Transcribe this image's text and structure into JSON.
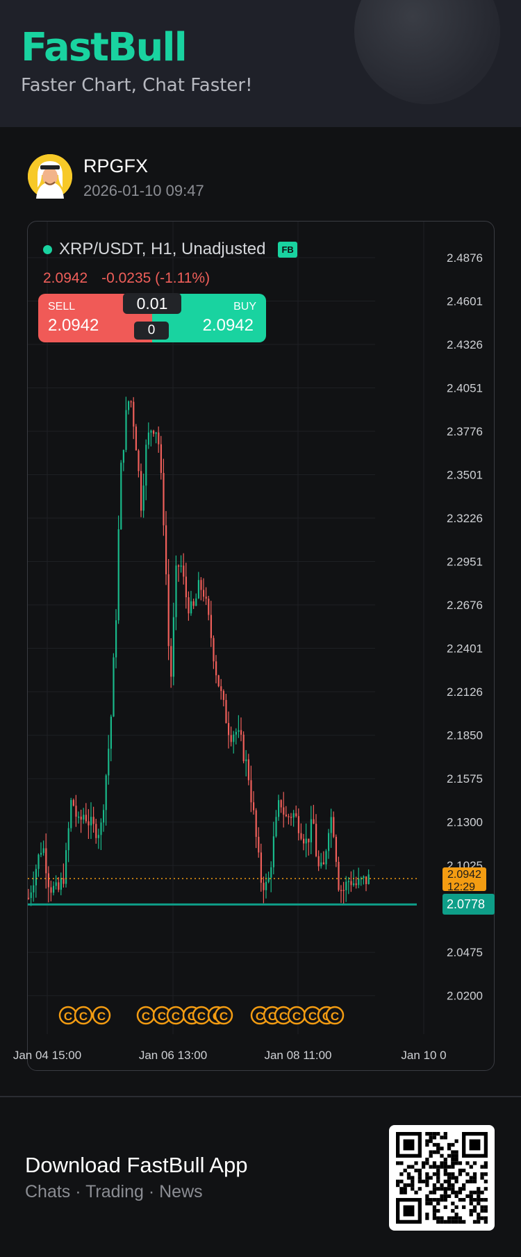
{
  "brand": {
    "logo_text": "FastBull",
    "tagline": "Faster Chart, Chat Faster!",
    "accent": "#19d3a0"
  },
  "post": {
    "username": "RPGFX",
    "timestamp": "2026-01-10 09:47"
  },
  "ticker": {
    "symbol_line": "XRP/USDT, H1, Unadjusted",
    "badge": "FB",
    "last_price": "2.0942",
    "change": "-0.0235 (-1.11%)"
  },
  "trade": {
    "sell_label": "SELL",
    "sell_price": "2.0942",
    "buy_label": "BUY",
    "buy_price": "2.0942",
    "quantity": "0.01",
    "spread": "0",
    "sell_color": "#f05a57",
    "buy_color": "#19d3a0"
  },
  "chart_data": {
    "type": "candlestick",
    "y_ticks": [
      "2.4876",
      "2.4601",
      "2.4326",
      "2.4051",
      "2.3776",
      "2.3501",
      "2.3226",
      "2.2951",
      "2.2676",
      "2.2401",
      "2.2126",
      "2.1850",
      "2.1575",
      "2.1300",
      "2.1025",
      "2.0475",
      "2.0200"
    ],
    "x_ticks": [
      "Jan 04 15:00",
      "Jan 06 13:00",
      "Jan 08 11:00",
      "Jan 10 0"
    ],
    "current_price_tag": "2.0942",
    "current_price_countdown": "12:29",
    "horizontal_line_tag": "2.0778",
    "up_color": "#19b98a",
    "down_color": "#f05f5a",
    "event_markers": "C",
    "marker_color": "#f39c12"
  },
  "footer": {
    "title": "Download FastBull App",
    "subtitle": "Chats · Trading · News"
  }
}
